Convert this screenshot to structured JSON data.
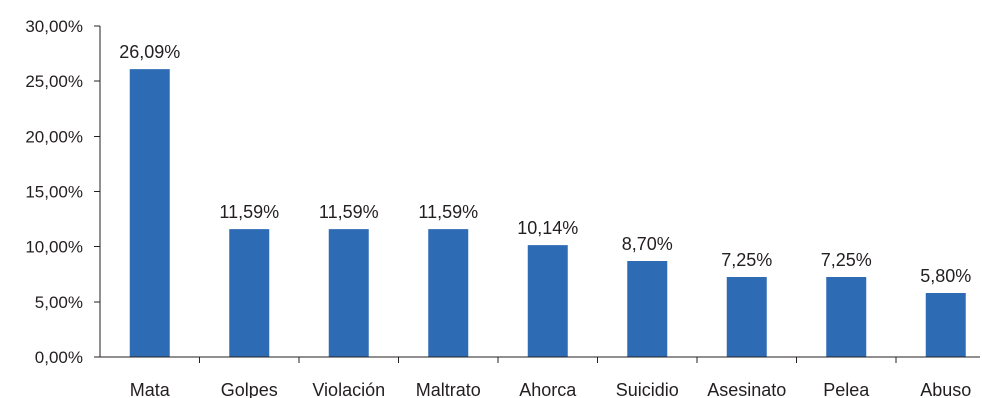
{
  "chart_data": {
    "type": "bar",
    "categories": [
      "Mata",
      "Golpes",
      "Violación",
      "Maltrato",
      "Ahorca",
      "Suicidio",
      "Asesinato",
      "Pelea",
      "Abuso"
    ],
    "values": [
      26.09,
      11.59,
      11.59,
      11.59,
      10.14,
      8.7,
      7.25,
      7.25,
      5.8
    ],
    "data_labels": [
      "26,09%",
      "11,59%",
      "11,59%",
      "11,59%",
      "10,14%",
      "8,70%",
      "7,25%",
      "7,25%",
      "5,80%"
    ],
    "ylim": [
      0,
      30
    ],
    "y_ticks": [
      0,
      5,
      10,
      15,
      20,
      25,
      30
    ],
    "y_tick_labels": [
      "0,00%",
      "5,00%",
      "10,00%",
      "15,00%",
      "20,00%",
      "25,00%",
      "30,00%"
    ],
    "bar_color": "#2e6bb5",
    "grid": false,
    "legend": "none",
    "title": "",
    "xlabel": "",
    "ylabel": ""
  }
}
